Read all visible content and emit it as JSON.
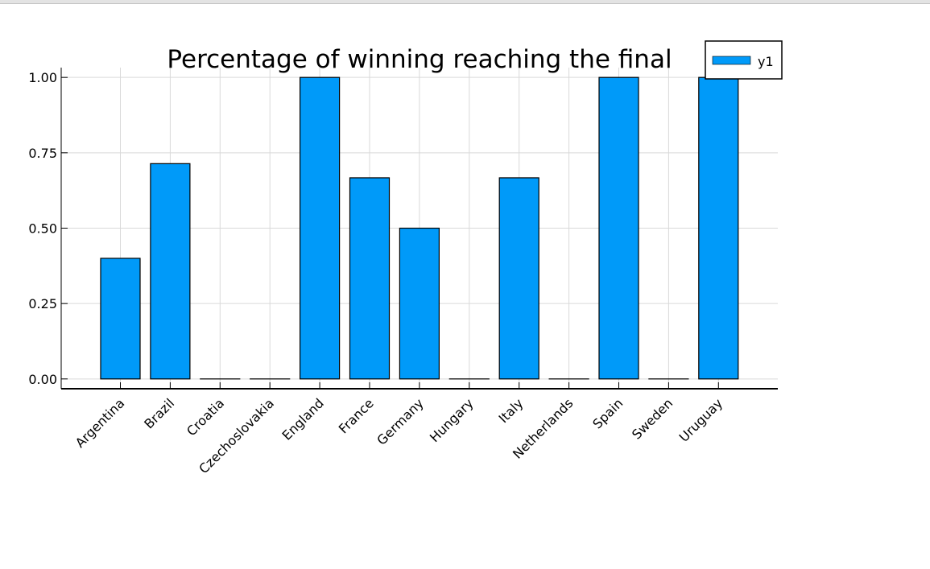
{
  "chart_data": {
    "type": "bar",
    "title": "Percentage of winning reaching the final",
    "xlabel": "",
    "ylabel": "",
    "categories": [
      "Argentina",
      "Brazil",
      "Croatia",
      "Czechoslovakia",
      "England",
      "France",
      "Germany",
      "Hungary",
      "Italy",
      "Netherlands",
      "Spain",
      "Sweden",
      "Uruguay"
    ],
    "series": [
      {
        "name": "y1",
        "values": [
          0.4,
          0.714,
          0.0,
          0.0,
          1.0,
          0.667,
          0.5,
          0.0,
          0.667,
          0.0,
          1.0,
          0.0,
          1.0
        ]
      }
    ],
    "yticks": [
      "0.00",
      "0.25",
      "0.50",
      "0.75",
      "1.00"
    ],
    "ylim": [
      -0.0325,
      1.0325
    ],
    "grid": true,
    "legend": "top-right",
    "colors": {
      "bar": "#009af9",
      "outline": "#000000",
      "grid": "#d9d9d9"
    }
  }
}
